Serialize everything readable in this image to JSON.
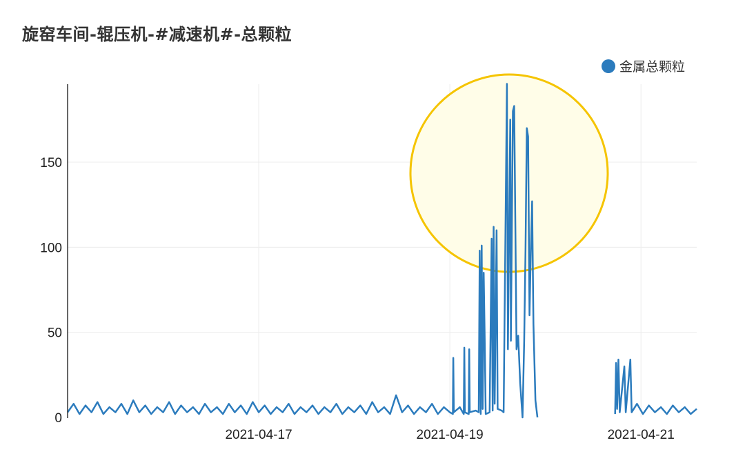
{
  "chart_data": {
    "type": "line",
    "title": "旋窑车间-辊压机-#减速机#-总颗粒",
    "xlabel": "",
    "ylabel": "",
    "x_ticks": [
      "2021-04-17",
      "2021-04-19",
      "2021-04-21"
    ],
    "y_ticks": [
      "0",
      "50",
      "100",
      "150"
    ],
    "ylim": [
      0,
      196
    ],
    "xlim": [
      "2021-04-15 00:00",
      "2021-04-21 14:00"
    ],
    "grid": true,
    "legend_position": "top-right",
    "highlight_annotation": {
      "shape": "circle",
      "color": "#f5c400",
      "fill": "#fffde8",
      "around": "peak values 2021-04-19"
    },
    "series": [
      {
        "name": "金属总颗粒",
        "color": "#2b7bbd",
        "points": [
          [
            "2021-04-15 00:00",
            3
          ],
          [
            "2021-04-15 01:30",
            8
          ],
          [
            "2021-04-15 03:00",
            2
          ],
          [
            "2021-04-15 04:30",
            7
          ],
          [
            "2021-04-15 06:00",
            3
          ],
          [
            "2021-04-15 07:30",
            9
          ],
          [
            "2021-04-15 09:00",
            2
          ],
          [
            "2021-04-15 10:30",
            6
          ],
          [
            "2021-04-15 12:00",
            3
          ],
          [
            "2021-04-15 13:30",
            8
          ],
          [
            "2021-04-15 15:00",
            2
          ],
          [
            "2021-04-15 16:30",
            10
          ],
          [
            "2021-04-15 18:00",
            3
          ],
          [
            "2021-04-15 19:30",
            7
          ],
          [
            "2021-04-15 21:00",
            2
          ],
          [
            "2021-04-15 22:30",
            6
          ],
          [
            "2021-04-16 00:00",
            3
          ],
          [
            "2021-04-16 01:30",
            9
          ],
          [
            "2021-04-16 03:00",
            2
          ],
          [
            "2021-04-16 04:30",
            7
          ],
          [
            "2021-04-16 06:00",
            3
          ],
          [
            "2021-04-16 07:30",
            6
          ],
          [
            "2021-04-16 09:00",
            2
          ],
          [
            "2021-04-16 10:30",
            8
          ],
          [
            "2021-04-16 12:00",
            3
          ],
          [
            "2021-04-16 13:30",
            6
          ],
          [
            "2021-04-16 15:00",
            2
          ],
          [
            "2021-04-16 16:30",
            8
          ],
          [
            "2021-04-16 18:00",
            3
          ],
          [
            "2021-04-16 19:30",
            7
          ],
          [
            "2021-04-16 21:00",
            2
          ],
          [
            "2021-04-16 22:30",
            9
          ],
          [
            "2021-04-17 00:00",
            3
          ],
          [
            "2021-04-17 01:30",
            7
          ],
          [
            "2021-04-17 03:00",
            2
          ],
          [
            "2021-04-17 04:30",
            6
          ],
          [
            "2021-04-17 06:00",
            3
          ],
          [
            "2021-04-17 07:30",
            8
          ],
          [
            "2021-04-17 09:00",
            2
          ],
          [
            "2021-04-17 10:30",
            6
          ],
          [
            "2021-04-17 12:00",
            3
          ],
          [
            "2021-04-17 13:30",
            7
          ],
          [
            "2021-04-17 15:00",
            2
          ],
          [
            "2021-04-17 16:30",
            6
          ],
          [
            "2021-04-17 18:00",
            3
          ],
          [
            "2021-04-17 19:30",
            8
          ],
          [
            "2021-04-17 21:00",
            2
          ],
          [
            "2021-04-17 22:30",
            6
          ],
          [
            "2021-04-18 00:00",
            3
          ],
          [
            "2021-04-18 01:30",
            7
          ],
          [
            "2021-04-18 03:00",
            2
          ],
          [
            "2021-04-18 04:30",
            9
          ],
          [
            "2021-04-18 06:00",
            3
          ],
          [
            "2021-04-18 07:30",
            6
          ],
          [
            "2021-04-18 09:00",
            2
          ],
          [
            "2021-04-18 10:30",
            13
          ],
          [
            "2021-04-18 12:00",
            3
          ],
          [
            "2021-04-18 13:30",
            7
          ],
          [
            "2021-04-18 15:00",
            2
          ],
          [
            "2021-04-18 16:30",
            6
          ],
          [
            "2021-04-18 18:00",
            3
          ],
          [
            "2021-04-18 19:30",
            8
          ],
          [
            "2021-04-18 21:00",
            2
          ],
          [
            "2021-04-18 22:30",
            6
          ],
          [
            "2021-04-19 00:00",
            3
          ],
          [
            "2021-04-19 00:45",
            2
          ],
          [
            "2021-04-19 00:52",
            35
          ],
          [
            "2021-04-19 01:00",
            3
          ],
          [
            "2021-04-19 02:30",
            6
          ],
          [
            "2021-04-19 03:30",
            2
          ],
          [
            "2021-04-19 03:38",
            41
          ],
          [
            "2021-04-19 03:46",
            3
          ],
          [
            "2021-04-19 04:45",
            2
          ],
          [
            "2021-04-19 04:52",
            40
          ],
          [
            "2021-04-19 05:00",
            3
          ],
          [
            "2021-04-19 06:30",
            4
          ],
          [
            "2021-04-19 07:15",
            3
          ],
          [
            "2021-04-19 07:30",
            98
          ],
          [
            "2021-04-19 07:45",
            2
          ],
          [
            "2021-04-19 08:00",
            101
          ],
          [
            "2021-04-19 08:15",
            5
          ],
          [
            "2021-04-19 08:30",
            85
          ],
          [
            "2021-04-19 08:45",
            48
          ],
          [
            "2021-04-19 09:00",
            2
          ],
          [
            "2021-04-19 10:00",
            3
          ],
          [
            "2021-04-19 10:30",
            105
          ],
          [
            "2021-04-19 10:45",
            4
          ],
          [
            "2021-04-19 11:00",
            112
          ],
          [
            "2021-04-19 11:15",
            8
          ],
          [
            "2021-04-19 11:45",
            110
          ],
          [
            "2021-04-19 12:00",
            5
          ],
          [
            "2021-04-19 13:00",
            4
          ],
          [
            "2021-04-19 13:30",
            3
          ],
          [
            "2021-04-19 14:20",
            196
          ],
          [
            "2021-04-19 14:35",
            40
          ],
          [
            "2021-04-19 15:10",
            175
          ],
          [
            "2021-04-19 15:20",
            45
          ],
          [
            "2021-04-19 15:50",
            180
          ],
          [
            "2021-04-19 16:10",
            183
          ],
          [
            "2021-04-19 16:30",
            100
          ],
          [
            "2021-04-19 16:45",
            40
          ],
          [
            "2021-04-19 17:10",
            48
          ],
          [
            "2021-04-19 17:40",
            20
          ],
          [
            "2021-04-19 18:15",
            0
          ],
          [
            "2021-04-19 18:40",
            45
          ],
          [
            "2021-04-19 19:00",
            98
          ],
          [
            "2021-04-19 19:20",
            170
          ],
          [
            "2021-04-19 19:40",
            165
          ],
          [
            "2021-04-19 20:00",
            60
          ],
          [
            "2021-04-19 20:20",
            97
          ],
          [
            "2021-04-19 20:40",
            127
          ],
          [
            "2021-04-19 21:00",
            55
          ],
          [
            "2021-04-19 21:30",
            10
          ],
          [
            "2021-04-19 22:00",
            0
          ],
          [
            "2021-04-19 22:10",
            null
          ],
          [
            "2021-04-20 17:20",
            null
          ],
          [
            "2021-04-20 17:30",
            2
          ],
          [
            "2021-04-20 17:45",
            32
          ],
          [
            "2021-04-20 18:00",
            5
          ],
          [
            "2021-04-20 18:20",
            34
          ],
          [
            "2021-04-20 18:40",
            3
          ],
          [
            "2021-04-20 19:50",
            30
          ],
          [
            "2021-04-20 20:10",
            3
          ],
          [
            "2021-04-20 21:20",
            34
          ],
          [
            "2021-04-20 21:40",
            3
          ],
          [
            "2021-04-20 23:00",
            8
          ],
          [
            "2021-04-21 00:30",
            2
          ],
          [
            "2021-04-21 02:00",
            7
          ],
          [
            "2021-04-21 03:30",
            3
          ],
          [
            "2021-04-21 05:00",
            6
          ],
          [
            "2021-04-21 06:30",
            2
          ],
          [
            "2021-04-21 08:00",
            7
          ],
          [
            "2021-04-21 09:30",
            3
          ],
          [
            "2021-04-21 11:00",
            6
          ],
          [
            "2021-04-21 12:30",
            2
          ],
          [
            "2021-04-21 14:00",
            5
          ]
        ]
      }
    ]
  }
}
